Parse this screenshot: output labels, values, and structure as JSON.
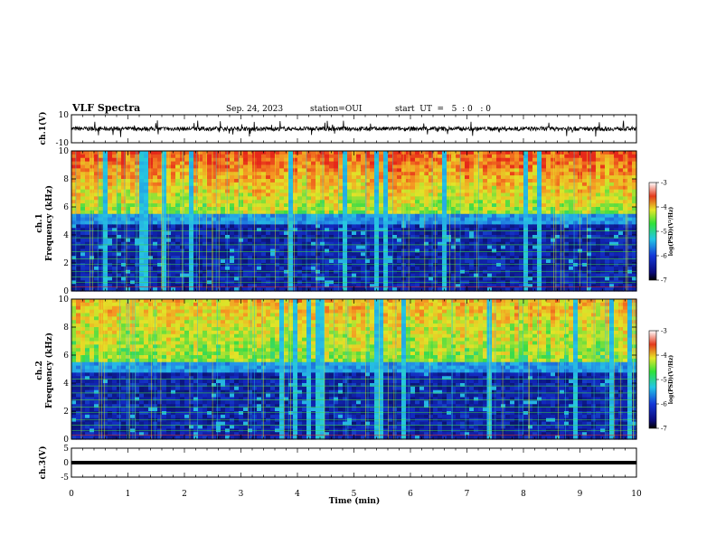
{
  "header": {
    "title": "VLF Spectra",
    "date": "Sep. 24, 2023",
    "station": "station=OUI",
    "start": "start  UT  =   5  : 0   : 0"
  },
  "chart_data": [
    {
      "type": "line",
      "name": "ch1-waveform",
      "ylabel": "ch.1(V)",
      "ylim": [
        -10,
        10
      ],
      "yticks": [
        "10",
        "-10"
      ],
      "xlim": [
        0,
        10
      ],
      "baseline": 0
    },
    {
      "type": "heatmap",
      "name": "ch1-spectrogram",
      "ylabel_line1": "ch.1",
      "ylabel_line2": "Frequency (kHz)",
      "ylim": [
        0,
        10
      ],
      "yticks": [
        "0",
        "2",
        "4",
        "6",
        "8",
        "10"
      ],
      "xlim": [
        0,
        10
      ],
      "colorbar": {
        "label": "log(PSD)(V²/Hz)",
        "ticks": [
          "-3",
          "-4",
          "-5",
          "-6",
          "-7"
        ],
        "range": [
          -7,
          -3
        ]
      }
    },
    {
      "type": "heatmap",
      "name": "ch2-spectrogram",
      "ylabel_line1": "ch.2",
      "ylabel_line2": "Frequency (kHz)",
      "ylim": [
        0,
        10
      ],
      "yticks": [
        "0",
        "2",
        "4",
        "6",
        "8",
        "10"
      ],
      "xlim": [
        0,
        10
      ],
      "colorbar": {
        "label": "log(PSD)(V²/Hz)",
        "ticks": [
          "-3",
          "-4",
          "-5",
          "-6",
          "-7"
        ],
        "range": [
          -7,
          -3
        ]
      }
    },
    {
      "type": "line",
      "name": "ch3-waveform",
      "ylabel": "ch.3(V)",
      "ylim": [
        -5,
        5
      ],
      "yticks": [
        "5",
        "0",
        "-5"
      ],
      "xlim": [
        0,
        10
      ],
      "baseline": 0
    }
  ],
  "xaxis": {
    "label": "Time (min)",
    "ticks": [
      "0",
      "1",
      "2",
      "3",
      "4",
      "5",
      "6",
      "7",
      "8",
      "9",
      "10"
    ]
  },
  "colors": {
    "red": "#e8261a",
    "orange": "#f5a623",
    "yellow": "#e9e628",
    "green": "#3fdc3c",
    "cyan": "#27c6e0",
    "blue": "#1530c8",
    "navy": "#07096b"
  }
}
